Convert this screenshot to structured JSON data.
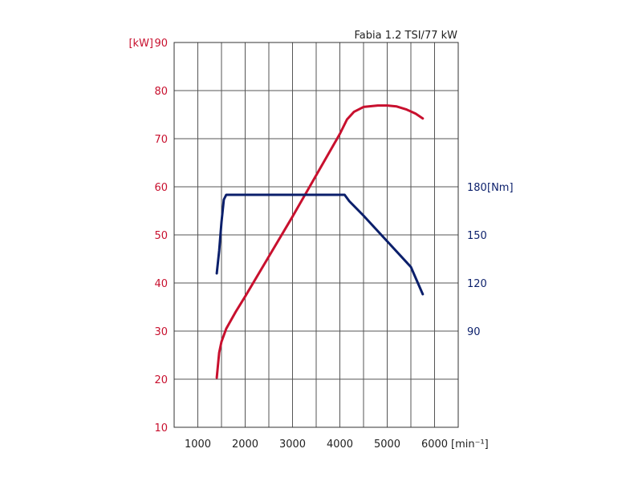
{
  "chart_data": {
    "type": "line",
    "title": "Fabia 1.2 TSI/77 kW",
    "xlabel": "[min⁻¹]",
    "x_ticks": [
      1000,
      2000,
      3000,
      4000,
      5000,
      6000
    ],
    "xlim": [
      500,
      6500
    ],
    "left_axis": {
      "unit": "[kW]",
      "ticks": [
        10,
        20,
        30,
        40,
        50,
        60,
        70,
        80,
        90
      ],
      "ylim": [
        10,
        90
      ],
      "color": "#c8102e"
    },
    "right_axis": {
      "unit": "[Nm]",
      "ticks": [
        90,
        120,
        150,
        180
      ],
      "ylim": [
        30,
        270
      ],
      "color": "#0b1f6b"
    },
    "grid": true,
    "series": [
      {
        "axis": "left",
        "color": "#c8102e",
        "x": [
          1400,
          1450,
          1500,
          1600,
          1800,
          2000,
          2500,
          3000,
          3500,
          4000,
          4150,
          4300,
          4500,
          4800,
          5000,
          5200,
          5400,
          5600,
          5750
        ],
        "y": [
          20.3,
          25.5,
          27.8,
          30.5,
          34.0,
          37.2,
          45.5,
          53.8,
          62.4,
          71.0,
          74.0,
          75.6,
          76.6,
          76.9,
          76.9,
          76.7,
          76.1,
          75.2,
          74.2
        ]
      },
      {
        "axis": "right",
        "color": "#0b1f6b",
        "x": [
          1400,
          1450,
          1500,
          1550,
          1600,
          2000,
          3000,
          4000,
          4100,
          4200,
          4500,
          5000,
          5500,
          5750
        ],
        "y": [
          126,
          140,
          158,
          172,
          175,
          175,
          175,
          175,
          175,
          171,
          162,
          146,
          130,
          113
        ]
      }
    ]
  }
}
